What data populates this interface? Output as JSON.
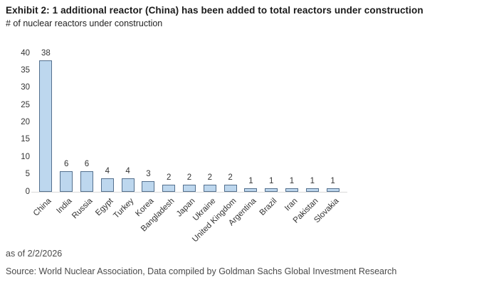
{
  "header": {
    "title": "Exhibit 2: 1 additional reactor (China) has been added to total reactors under construction",
    "subtitle": "# of nuclear reactors under construction"
  },
  "footer": {
    "as_of": "as of 2/2/2026",
    "source": "Source: World Nuclear Association, Data compiled by Goldman Sachs Global Investment Research"
  },
  "colors": {
    "bar_fill": "#bdd7ee",
    "bar_border": "#54708e",
    "baseline": "#d9d9d9",
    "axis_text": "#333333",
    "title_text": "#1a1a1a",
    "footer_text": "#4a4a4a"
  },
  "chart_data": {
    "type": "bar",
    "title": "Exhibit 2: 1 additional reactor (China) has been added to total reactors under construction",
    "subtitle": "# of nuclear reactors under construction",
    "categories": [
      "China",
      "India",
      "Russia",
      "Egypt",
      "Turkey",
      "Korea",
      "Bangladesh",
      "Japan",
      "Ukraine",
      "United Kingdom",
      "Argentina",
      "Brazil",
      "Iran",
      "Pakistan",
      "Slovakia"
    ],
    "values": [
      38,
      6,
      6,
      4,
      4,
      3,
      2,
      2,
      2,
      2,
      1,
      1,
      1,
      1,
      1
    ],
    "data_labels": [
      38,
      6,
      6,
      4,
      4,
      3,
      2,
      2,
      2,
      2,
      1,
      1,
      1,
      1,
      1
    ],
    "xlabel": "",
    "ylabel": "# of nuclear reactors under construction",
    "ylim": [
      0,
      40
    ],
    "yticks": [
      0,
      5,
      10,
      15,
      20,
      25,
      30,
      35,
      40
    ],
    "grid": false,
    "legend": null,
    "x_tick_rotation": 45
  }
}
